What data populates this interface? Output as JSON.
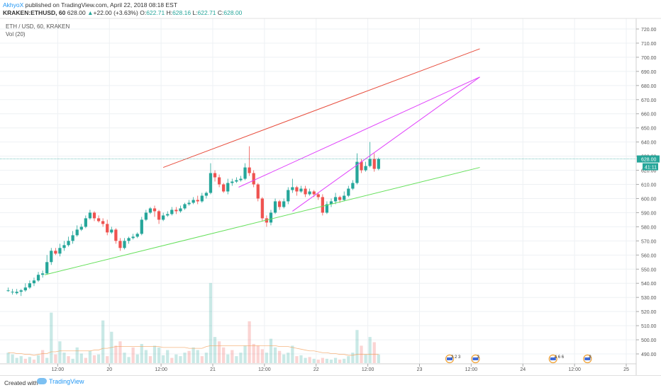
{
  "header": {
    "author": "AkhyoX",
    "published": " published on TradingView.com, April 22, 2018 08:18 EST",
    "symbol": "KRAKEN:ETHUSD, 60",
    "last": "628.00",
    "change": "+22.00 (+3.63%)",
    "o_label": "O:",
    "o_value": "622.71",
    "h_label": "H:",
    "h_value": "628.16",
    "l_label": "L:",
    "l_value": "622.71",
    "c_label": "C:",
    "c_value": "628.00"
  },
  "legend": {
    "main": "ETH / USD, 60, KRAKEN",
    "vol": "Vol (20)"
  },
  "footer": {
    "created_with": "Created with",
    "brand": "TradingView"
  },
  "colors": {
    "up": "#26a69a",
    "down": "#ef5350",
    "upper_channel": "#e74c3c",
    "lower_channel": "#66e05c",
    "wedge": "#e040fb",
    "price_tag": "#26a69a",
    "timer_tag": "#26a69a"
  },
  "chart_data": {
    "type": "candlestick",
    "ylim": [
      485,
      725
    ],
    "y_ticks": [
      "490.00",
      "500.00",
      "510.00",
      "520.00",
      "530.00",
      "540.00",
      "550.00",
      "560.00",
      "570.00",
      "580.00",
      "590.00",
      "600.00",
      "610.00",
      "620.00",
      "630.00",
      "640.00",
      "650.00",
      "660.00",
      "670.00",
      "680.00",
      "690.00",
      "700.00",
      "710.00",
      "720.00"
    ],
    "x_ticks": [
      {
        "label": "12:00",
        "t": 12
      },
      {
        "label": "20",
        "t": 24
      },
      {
        "label": "12:00",
        "t": 36
      },
      {
        "label": "21",
        "t": 48
      },
      {
        "label": "12:00",
        "t": 60
      },
      {
        "label": "22",
        "t": 72
      },
      {
        "label": "12:00",
        "t": 84
      },
      {
        "label": "23",
        "t": 96
      },
      {
        "label": "12:00",
        "t": 108
      },
      {
        "label": "24",
        "t": 120
      },
      {
        "label": "12:00",
        "t": 132
      },
      {
        "label": "25",
        "t": 144
      }
    ],
    "last_price": "628.00",
    "timer": "41:11",
    "candles": [
      [
        535,
        535,
        537,
        534
      ],
      [
        534,
        534,
        536,
        532
      ],
      [
        533,
        534,
        536,
        532
      ],
      [
        534,
        535,
        536,
        531
      ],
      [
        535,
        537,
        540,
        534
      ],
      [
        537,
        540,
        542,
        536
      ],
      [
        540,
        542,
        544,
        538
      ],
      [
        542,
        546,
        548,
        541
      ],
      [
        546,
        547,
        549,
        544
      ],
      [
        547,
        555,
        560,
        546
      ],
      [
        555,
        563,
        565,
        553
      ],
      [
        563,
        561,
        565,
        560
      ],
      [
        561,
        565,
        568,
        559
      ],
      [
        565,
        567,
        570,
        563
      ],
      [
        567,
        570,
        573,
        566
      ],
      [
        570,
        574,
        577,
        568
      ],
      [
        574,
        578,
        581,
        573
      ],
      [
        578,
        580,
        582,
        577
      ],
      [
        580,
        586,
        588,
        579
      ],
      [
        586,
        590,
        592,
        585
      ],
      [
        590,
        586,
        591,
        584
      ],
      [
        586,
        584,
        588,
        583
      ],
      [
        584,
        582,
        586,
        580
      ],
      [
        582,
        576,
        585,
        574
      ],
      [
        576,
        578,
        580,
        575
      ],
      [
        578,
        570,
        579,
        568
      ],
      [
        570,
        565,
        572,
        563
      ],
      [
        565,
        570,
        572,
        564
      ],
      [
        570,
        572,
        573,
        568
      ],
      [
        572,
        573,
        575,
        571
      ],
      [
        573,
        575,
        576,
        572
      ],
      [
        575,
        585,
        587,
        574
      ],
      [
        585,
        590,
        592,
        584
      ],
      [
        590,
        593,
        594,
        589
      ],
      [
        593,
        591,
        595,
        587
      ],
      [
        591,
        585,
        592,
        582
      ],
      [
        585,
        588,
        590,
        584
      ],
      [
        588,
        589,
        591,
        587
      ],
      [
        589,
        592,
        594,
        588
      ],
      [
        592,
        591,
        594,
        589
      ],
      [
        591,
        593,
        595,
        590
      ],
      [
        593,
        596,
        597,
        592
      ],
      [
        596,
        597,
        599,
        595
      ],
      [
        597,
        599,
        601,
        596
      ],
      [
        599,
        598,
        602,
        596
      ],
      [
        598,
        602,
        604,
        597
      ],
      [
        602,
        604,
        605,
        600
      ],
      [
        604,
        618,
        625,
        603
      ],
      [
        618,
        615,
        620,
        612
      ],
      [
        615,
        610,
        617,
        608
      ],
      [
        610,
        605,
        611,
        604
      ],
      [
        605,
        611,
        614,
        603
      ],
      [
        611,
        612,
        614,
        609
      ],
      [
        612,
        613,
        615,
        611
      ],
      [
        613,
        614,
        616,
        612
      ],
      [
        614,
        622,
        625,
        613
      ],
      [
        622,
        618,
        637,
        616
      ],
      [
        618,
        610,
        620,
        608
      ],
      [
        610,
        600,
        611,
        598
      ],
      [
        600,
        586,
        601,
        584
      ],
      [
        586,
        583,
        588,
        580
      ],
      [
        583,
        590,
        592,
        581
      ],
      [
        590,
        598,
        600,
        589
      ],
      [
        598,
        594,
        599,
        592
      ],
      [
        594,
        598,
        600,
        593
      ],
      [
        598,
        606,
        608,
        596
      ],
      [
        606,
        608,
        614,
        604
      ],
      [
        608,
        605,
        609,
        602
      ],
      [
        605,
        607,
        609,
        604
      ],
      [
        607,
        603,
        609,
        601
      ],
      [
        603,
        605,
        607,
        602
      ],
      [
        605,
        603,
        606,
        601
      ],
      [
        603,
        601,
        604,
        599
      ],
      [
        601,
        590,
        603,
        588
      ],
      [
        590,
        596,
        598,
        589
      ],
      [
        596,
        598,
        600,
        594
      ],
      [
        598,
        601,
        604,
        596
      ],
      [
        601,
        599,
        602,
        597
      ],
      [
        599,
        602,
        605,
        598
      ],
      [
        602,
        607,
        609,
        601
      ],
      [
        607,
        611,
        613,
        606
      ],
      [
        611,
        626,
        632,
        610
      ],
      [
        626,
        620,
        628,
        618
      ],
      [
        620,
        623,
        626,
        619
      ],
      [
        623,
        628,
        640,
        622
      ],
      [
        628,
        621,
        632,
        619
      ],
      [
        621,
        628,
        629,
        620
      ]
    ],
    "volumes": [
      [
        12,
        1
      ],
      [
        10,
        1
      ],
      [
        6,
        1
      ],
      [
        8,
        1
      ],
      [
        5,
        0
      ],
      [
        7,
        1
      ],
      [
        4,
        0
      ],
      [
        9,
        1
      ],
      [
        15,
        0
      ],
      [
        6,
        1
      ],
      [
        58,
        1
      ],
      [
        10,
        0
      ],
      [
        25,
        1
      ],
      [
        12,
        1
      ],
      [
        8,
        0
      ],
      [
        5,
        1
      ],
      [
        18,
        1
      ],
      [
        11,
        1
      ],
      [
        6,
        0
      ],
      [
        14,
        1
      ],
      [
        9,
        0
      ],
      [
        10,
        1
      ],
      [
        49,
        1
      ],
      [
        8,
        0
      ],
      [
        36,
        1
      ],
      [
        20,
        0
      ],
      [
        25,
        0
      ],
      [
        12,
        1
      ],
      [
        7,
        1
      ],
      [
        18,
        0
      ],
      [
        10,
        1
      ],
      [
        22,
        1
      ],
      [
        15,
        1
      ],
      [
        8,
        0
      ],
      [
        20,
        1
      ],
      [
        18,
        1
      ],
      [
        9,
        1
      ],
      [
        15,
        1
      ],
      [
        6,
        0
      ],
      [
        10,
        1
      ],
      [
        8,
        1
      ],
      [
        12,
        1
      ],
      [
        14,
        0
      ],
      [
        18,
        1
      ],
      [
        15,
        1
      ],
      [
        8,
        0
      ],
      [
        12,
        1
      ],
      [
        92,
        1
      ],
      [
        30,
        1
      ],
      [
        25,
        0
      ],
      [
        18,
        0
      ],
      [
        10,
        1
      ],
      [
        15,
        0
      ],
      [
        8,
        1
      ],
      [
        12,
        1
      ],
      [
        20,
        1
      ],
      [
        48,
        0
      ],
      [
        22,
        0
      ],
      [
        20,
        0
      ],
      [
        16,
        0
      ],
      [
        12,
        1
      ],
      [
        28,
        1
      ],
      [
        18,
        1
      ],
      [
        14,
        0
      ],
      [
        10,
        1
      ],
      [
        12,
        1
      ],
      [
        20,
        1
      ],
      [
        8,
        0
      ],
      [
        9,
        1
      ],
      [
        6,
        1
      ],
      [
        7,
        0
      ],
      [
        5,
        1
      ],
      [
        4,
        0
      ],
      [
        6,
        0
      ],
      [
        5,
        1
      ],
      [
        4,
        1
      ],
      [
        6,
        1
      ],
      [
        4,
        0
      ],
      [
        5,
        1
      ],
      [
        8,
        1
      ],
      [
        12,
        1
      ],
      [
        38,
        1
      ],
      [
        20,
        0
      ],
      [
        10,
        1
      ],
      [
        30,
        1
      ],
      [
        24,
        0
      ],
      [
        10,
        1
      ]
    ],
    "volume_ma": [
      12,
      12,
      11,
      11,
      10,
      10,
      9,
      10,
      11,
      11,
      13,
      13,
      14,
      14,
      14,
      14,
      14,
      14,
      14,
      14,
      15,
      15,
      17,
      17,
      18,
      19,
      19,
      19,
      19,
      19,
      19,
      19,
      19,
      19,
      19,
      19,
      18,
      18,
      18,
      18,
      18,
      18,
      17,
      17,
      17,
      17,
      19,
      20,
      20,
      20,
      20,
      20,
      20,
      20,
      20,
      20,
      20,
      20,
      20,
      20,
      20,
      20,
      20,
      19,
      19,
      19,
      18,
      17,
      16,
      15,
      14,
      14,
      13,
      12,
      12,
      11,
      11,
      10,
      10,
      9,
      9,
      10,
      10,
      10,
      10,
      10,
      10
    ],
    "drawn_lines": [
      {
        "name": "upper-channel-line",
        "color": "upper_channel",
        "from": [
          36.5,
          622
        ],
        "to": [
          110,
          706
        ]
      },
      {
        "name": "lower-channel-line",
        "color": "lower_channel",
        "from": [
          9,
          546
        ],
        "to": [
          110,
          622
        ]
      },
      {
        "name": "wedge-upper-line",
        "color": "wedge",
        "from": [
          54,
          608
        ],
        "to": [
          110,
          686
        ]
      },
      {
        "name": "wedge-lower-line",
        "color": "wedge",
        "from": [
          66.5,
          591
        ],
        "to": [
          110,
          686
        ]
      }
    ],
    "events": [
      {
        "name": "event-flag-1",
        "t": 103,
        "text": "3 2 3"
      },
      {
        "name": "event-flag-2",
        "t": 109,
        "text": "3"
      },
      {
        "name": "event-flag-3",
        "t": 127,
        "text": "4 6 6"
      },
      {
        "name": "event-flag-4",
        "t": 135,
        "text": "8"
      }
    ]
  }
}
